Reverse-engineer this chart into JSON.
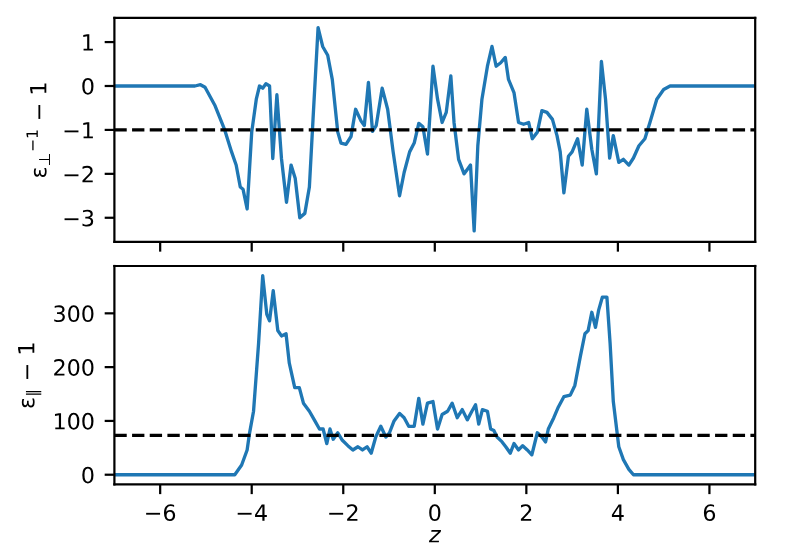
{
  "chart_data": [
    {
      "type": "line",
      "ylabel": "ε$_{⊥}$$^{−1}$ − 1",
      "xlim": [
        -7,
        7
      ],
      "xticks": [
        {
          "value": -6,
          "label": null
        },
        {
          "value": -4,
          "label": null
        },
        {
          "value": -2,
          "label": null
        },
        {
          "value": 0,
          "label": null
        },
        {
          "value": 2,
          "label": null
        },
        {
          "value": 4,
          "label": null
        },
        {
          "value": 6,
          "label": null
        }
      ],
      "ylim": [
        -3.55,
        1.55
      ],
      "yticks": [
        {
          "value": -3,
          "label": "−3"
        },
        {
          "value": -2,
          "label": "−2"
        },
        {
          "value": -1,
          "label": "−1"
        },
        0,
        1
      ],
      "tick_labels": "y",
      "x": [
        -7,
        -5.24,
        -5.12,
        -5.02,
        -4.8,
        -4.59,
        -4.44,
        -4.34,
        -4.25,
        -4.19,
        -4.1,
        -4.0,
        -3.9,
        -3.83,
        -3.76,
        -3.69,
        -3.61,
        -3.54,
        -3.45,
        -3.35,
        -3.24,
        -3.14,
        -3.05,
        -2.95,
        -2.84,
        -2.74,
        -2.66,
        -2.55,
        -2.45,
        -2.34,
        -2.24,
        -2.12,
        -2.05,
        -1.94,
        -1.83,
        -1.73,
        -1.61,
        -1.54,
        -1.45,
        -1.36,
        -1.28,
        -1.15,
        -1.03,
        -0.91,
        -0.77,
        -0.67,
        -0.55,
        -0.45,
        -0.35,
        -0.26,
        -0.16,
        -0.04,
        0.06,
        0.16,
        0.25,
        0.35,
        0.42,
        0.52,
        0.64,
        0.71,
        0.78,
        0.86,
        0.94,
        1.03,
        1.15,
        1.25,
        1.34,
        1.44,
        1.54,
        1.61,
        1.73,
        1.83,
        1.94,
        2.05,
        2.13,
        2.24,
        2.34,
        2.45,
        2.57,
        2.67,
        2.74,
        2.82,
        2.92,
        3.0,
        3.12,
        3.22,
        3.32,
        3.43,
        3.53,
        3.64,
        3.73,
        3.82,
        3.9,
        4.02,
        4.12,
        4.24,
        4.34,
        4.46,
        4.59,
        4.7,
        4.85,
        5.0,
        5.14,
        7
      ],
      "series": [
        {
          "color": "#1f77b4",
          "values": [
            0,
            0,
            0.03,
            -0.03,
            -0.45,
            -1.0,
            -1.5,
            -1.8,
            -2.3,
            -2.35,
            -2.8,
            -1.05,
            -0.3,
            0.0,
            -0.05,
            0.05,
            0,
            -1.65,
            -0.2,
            -1.65,
            -2.65,
            -1.8,
            -2.1,
            -3.0,
            -2.9,
            -2.3,
            -0.75,
            1.33,
            0.9,
            0.7,
            0.15,
            -1.05,
            -1.3,
            -1.33,
            -1.15,
            -0.53,
            -0.8,
            -0.9,
            0.08,
            -1.03,
            -0.9,
            -0.05,
            -0.53,
            -1.5,
            -2.5,
            -1.97,
            -1.5,
            -1.3,
            -0.85,
            -0.93,
            -1.55,
            0.45,
            -0.3,
            -0.83,
            -0.6,
            0.23,
            -0.83,
            -1.67,
            -2.0,
            -1.9,
            -1.8,
            -3.3,
            -1.36,
            -0.3,
            0.45,
            0.9,
            0.45,
            0.53,
            0.65,
            0.15,
            -0.15,
            -0.83,
            -0.87,
            -0.83,
            -1.2,
            -1.05,
            -0.56,
            -0.6,
            -0.76,
            -1.13,
            -1.5,
            -2.43,
            -1.6,
            -1.5,
            -1.2,
            -1.8,
            -0.53,
            -1.44,
            -2.0,
            0.56,
            -0.3,
            -1.64,
            -1.13,
            -1.74,
            -1.67,
            -1.8,
            -1.64,
            -1.36,
            -1.2,
            -0.83,
            -0.3,
            -0.08,
            0,
            0
          ]
        }
      ],
      "ref_lines": [
        {
          "axis": "y",
          "value": -1,
          "color": "#000000",
          "line_style": "dashed"
        }
      ]
    },
    {
      "type": "line",
      "ylabel": "ε$_{∥}$ − 1",
      "xlabel": "z",
      "xlim": [
        -7,
        7
      ],
      "xticks": [
        {
          "value": -6,
          "label": "−6"
        },
        {
          "value": -4,
          "label": "−4"
        },
        {
          "value": -2,
          "label": "−2"
        },
        0,
        2,
        4,
        6
      ],
      "ylim": [
        -18,
        388
      ],
      "yticks": [
        0,
        100,
        200,
        300
      ],
      "x": [
        -7,
        -4.37,
        -4.22,
        -4.1,
        -4.05,
        -3.96,
        -3.85,
        -3.76,
        -3.67,
        -3.61,
        -3.53,
        -3.43,
        -3.35,
        -3.25,
        -3.18,
        -3.06,
        -2.96,
        -2.87,
        -2.74,
        -2.62,
        -2.52,
        -2.44,
        -2.36,
        -2.29,
        -2.22,
        -2.12,
        -2.02,
        -1.9,
        -1.79,
        -1.68,
        -1.58,
        -1.48,
        -1.39,
        -1.29,
        -1.18,
        -1.07,
        -0.99,
        -0.89,
        -0.77,
        -0.67,
        -0.57,
        -0.45,
        -0.35,
        -0.26,
        -0.16,
        -0.04,
        0.06,
        0.16,
        0.28,
        0.38,
        0.49,
        0.6,
        0.71,
        0.81,
        0.89,
        0.96,
        1.04,
        1.15,
        1.22,
        1.29,
        1.36,
        1.47,
        1.55,
        1.65,
        1.73,
        1.83,
        1.92,
        2.02,
        2.12,
        2.24,
        2.34,
        2.42,
        2.48,
        2.6,
        2.7,
        2.82,
        2.96,
        3.06,
        3.18,
        3.28,
        3.35,
        3.43,
        3.51,
        3.58,
        3.66,
        3.76,
        3.83,
        3.9,
        4.02,
        4.12,
        4.24,
        4.34,
        7
      ],
      "series": [
        {
          "color": "#1f77b4",
          "values": [
            0,
            0,
            18,
            46,
            76,
            118,
            244,
            370,
            298,
            286,
            342,
            268,
            258,
            262,
            208,
            162,
            162,
            133,
            118,
            100,
            85,
            85,
            58,
            85,
            66,
            78,
            64,
            54,
            46,
            52,
            46,
            52,
            40,
            70,
            90,
            70,
            78,
            100,
            114,
            106,
            90,
            90,
            142,
            94,
            133,
            136,
            85,
            112,
            118,
            133,
            106,
            121,
            102,
            118,
            130,
            94,
            121,
            118,
            85,
            82,
            70,
            61,
            52,
            40,
            58,
            46,
            54,
            46,
            37,
            78,
            70,
            61,
            85,
            106,
            126,
            145,
            148,
            166,
            220,
            262,
            268,
            302,
            274,
            306,
            330,
            330,
            244,
            136,
            52,
            28,
            10,
            0,
            0
          ]
        }
      ],
      "ref_lines": [
        {
          "axis": "y",
          "value": 73,
          "color": "#000000",
          "line_style": "dashed"
        }
      ]
    }
  ]
}
